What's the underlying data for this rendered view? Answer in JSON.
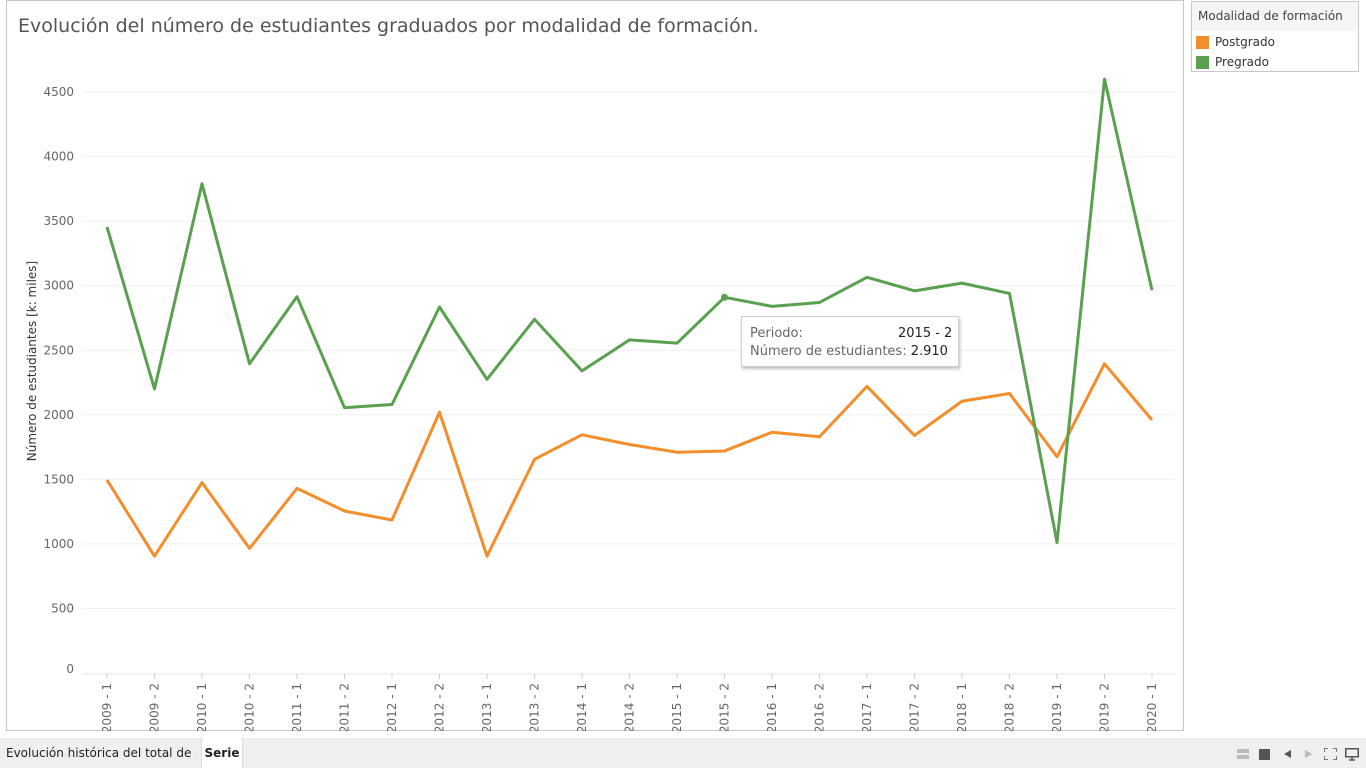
{
  "title": "Evolución del número de estudiantes graduados por modalidad de formación.",
  "chart_data": {
    "type": "line",
    "ylabel": "Número de estudiantes  [k: miles]",
    "xlabel": "",
    "ylim": [
      0,
      4800
    ],
    "yticks": [
      0,
      500,
      1000,
      1500,
      2000,
      2500,
      3000,
      3500,
      4000,
      4500
    ],
    "grid": true,
    "legend_position": "right",
    "categories": [
      "2009 - 1",
      "2009 - 2",
      "2010 - 1",
      "2010 - 2",
      "2011 - 1",
      "2011 - 2",
      "2012 - 1",
      "2012 - 2",
      "2013 - 1",
      "2013 - 2",
      "2014 - 1",
      "2014 - 2",
      "2015 - 1",
      "2015 - 2",
      "2016 - 1",
      "2016 - 2",
      "2017 - 1",
      "2017 - 2",
      "2018 - 1",
      "2018 - 2",
      "2019 - 1",
      "2019 - 2",
      "2020 - 1"
    ],
    "series": [
      {
        "name": "Postgrado",
        "color": "#f28e2b",
        "values": [
          1495,
          905,
          1475,
          965,
          1430,
          1255,
          1185,
          2020,
          905,
          1655,
          1845,
          1770,
          1710,
          1720,
          1865,
          1830,
          2220,
          1840,
          2105,
          2165,
          1675,
          2395,
          1960
        ]
      },
      {
        "name": "Pregrado",
        "color": "#59a14f",
        "values": [
          3455,
          2200,
          3790,
          2395,
          2915,
          2055,
          2080,
          2835,
          2275,
          2740,
          2340,
          2580,
          2555,
          2910,
          2840,
          2870,
          3065,
          2960,
          3020,
          2940,
          1010,
          4600,
          2965
        ]
      }
    ]
  },
  "legend": {
    "title": "Modalidad de formación",
    "items": [
      {
        "label": "Postgrado",
        "color": "#f28e2b"
      },
      {
        "label": "Pregrado",
        "color": "#59a14f"
      }
    ]
  },
  "tooltip": {
    "period_label": "Periodo:",
    "period_value": "2015 - 2",
    "count_label": "Número de estudiantes:",
    "count_value": "2.910",
    "series": "Pregrado",
    "index": 13
  },
  "tabs": [
    {
      "label": "Evolución histórica del total de e..."
    },
    {
      "label": "Serie"
    }
  ],
  "toolbar": {
    "icons": [
      "grid-view-icon",
      "single-view-icon",
      "prev-icon",
      "next-icon",
      "fullscreen-icon",
      "present-icon"
    ]
  }
}
